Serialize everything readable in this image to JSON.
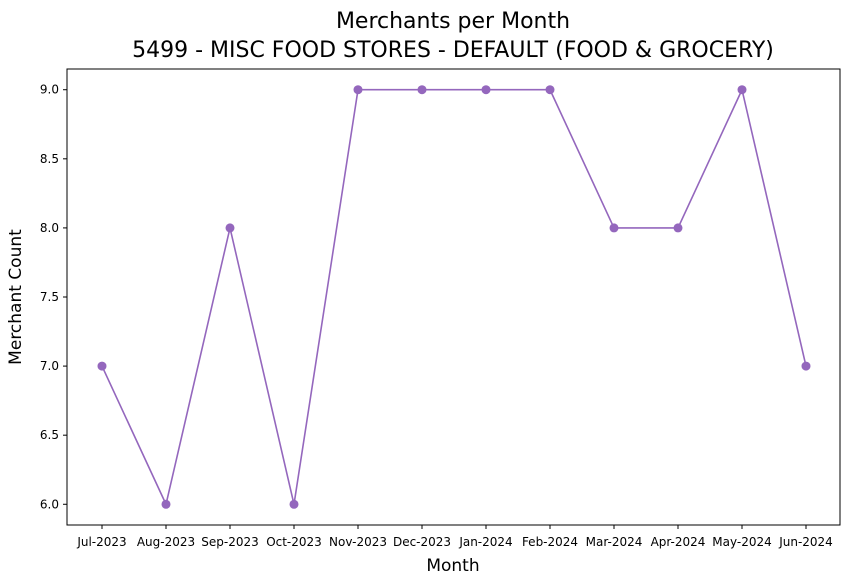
{
  "chart_data": {
    "type": "line",
    "title": "Merchants per Month",
    "subtitle": "5499 - MISC FOOD STORES - DEFAULT (FOOD & GROCERY)",
    "xlabel": "Month",
    "ylabel": "Merchant Count",
    "categories": [
      "Jul-2023",
      "Aug-2023",
      "Sep-2023",
      "Oct-2023",
      "Nov-2023",
      "Dec-2023",
      "Jan-2024",
      "Feb-2024",
      "Mar-2024",
      "Apr-2024",
      "May-2024",
      "Jun-2024"
    ],
    "series": [
      {
        "values": [
          7,
          6,
          8,
          6,
          9,
          9,
          9,
          9,
          8,
          8,
          9,
          7
        ],
        "color": "#9467bd"
      }
    ],
    "ylim": [
      5.85,
      9.15
    ],
    "yticks": [
      "6.0",
      "6.5",
      "7.0",
      "7.5",
      "8.0",
      "8.5",
      "9.0"
    ],
    "grid": false,
    "legend": "none"
  }
}
